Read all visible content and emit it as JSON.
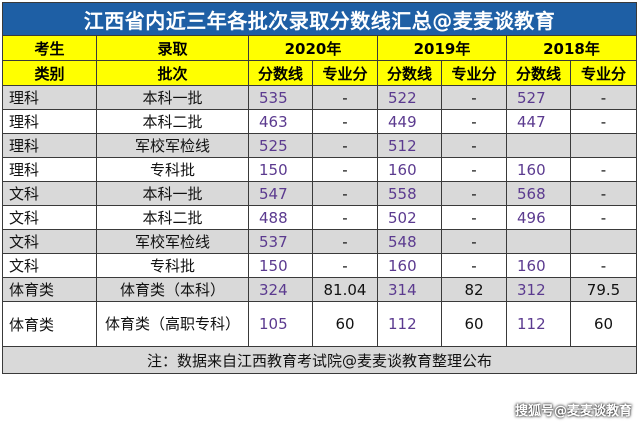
{
  "title": "江西省内近三年各批次录取分数线汇总@麦麦谈教育",
  "header": {
    "col1_top": "考生",
    "col2_top": "录取",
    "col1_bottom": "类别",
    "col2_bottom": "批次",
    "years": [
      "2020年",
      "2019年",
      "2018年"
    ],
    "score_label": "分数线",
    "major_label": "专业分"
  },
  "rows": [
    {
      "category": "理科",
      "batch": "本科一批",
      "s2020": "535",
      "m2020": "-",
      "s2019": "522",
      "m2019": "-",
      "s2018": "527",
      "m2018": "-"
    },
    {
      "category": "理科",
      "batch": "本科二批",
      "s2020": "463",
      "m2020": "-",
      "s2019": "449",
      "m2019": "-",
      "s2018": "447",
      "m2018": "-"
    },
    {
      "category": "理科",
      "batch": "军校军检线",
      "s2020": "525",
      "m2020": "-",
      "s2019": "512",
      "m2019": "-",
      "s2018": "",
      "m2018": ""
    },
    {
      "category": "理科",
      "batch": "专科批",
      "s2020": "150",
      "m2020": "-",
      "s2019": "160",
      "m2019": "-",
      "s2018": "160",
      "m2018": "-"
    },
    {
      "category": "文科",
      "batch": "本科一批",
      "s2020": "547",
      "m2020": "-",
      "s2019": "558",
      "m2019": "-",
      "s2018": "568",
      "m2018": "-"
    },
    {
      "category": "文科",
      "batch": "本科二批",
      "s2020": "488",
      "m2020": "-",
      "s2019": "502",
      "m2019": "-",
      "s2018": "496",
      "m2018": "-"
    },
    {
      "category": "文科",
      "batch": "军校军检线",
      "s2020": "537",
      "m2020": "-",
      "s2019": "548",
      "m2019": "-",
      "s2018": "",
      "m2018": ""
    },
    {
      "category": "文科",
      "batch": "专科批",
      "s2020": "150",
      "m2020": "-",
      "s2019": "160",
      "m2019": "-",
      "s2018": "160",
      "m2018": "-"
    },
    {
      "category": "体育类",
      "batch": "体育类（本科）",
      "s2020": "324",
      "m2020": "81.04",
      "s2019": "314",
      "m2019": "82",
      "s2018": "312",
      "m2018": "79.5"
    },
    {
      "category": "体育类",
      "batch": "体育类（高职专科）",
      "s2020": "105",
      "m2020": "60",
      "s2019": "112",
      "m2019": "60",
      "s2018": "112",
      "m2018": "60"
    }
  ],
  "note": "注：数据来自江西教育考试院@麦麦谈教育整理公布",
  "watermark": "搜狐号@麦麦谈教育",
  "colors": {
    "title_bg": "#1e5fa5",
    "header_bg": "#ffff00",
    "row_grey": "#d9d9d9",
    "number": "#5b3a8f"
  }
}
